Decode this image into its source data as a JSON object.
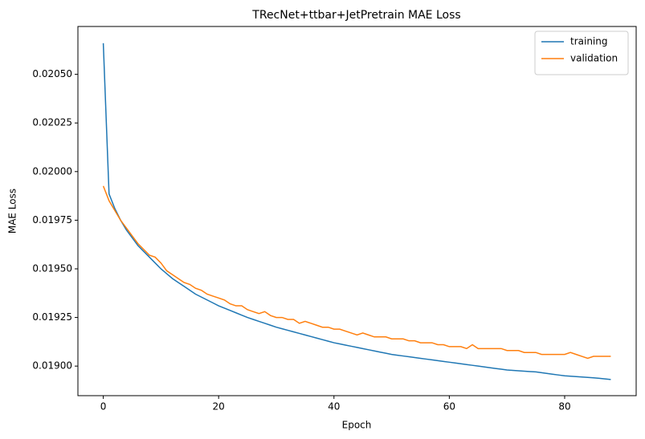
{
  "chart_data": {
    "type": "line",
    "title": "TRecNet+ttbar+JetPretrain MAE Loss",
    "xlabel": "Epoch",
    "ylabel": "MAE Loss",
    "x": [
      0,
      1,
      2,
      3,
      4,
      5,
      6,
      7,
      8,
      9,
      10,
      11,
      12,
      13,
      14,
      15,
      16,
      17,
      18,
      19,
      20,
      21,
      22,
      23,
      24,
      25,
      26,
      27,
      28,
      29,
      30,
      31,
      32,
      33,
      34,
      35,
      36,
      37,
      38,
      39,
      40,
      41,
      42,
      43,
      44,
      45,
      46,
      47,
      48,
      49,
      50,
      51,
      52,
      53,
      54,
      55,
      56,
      57,
      58,
      59,
      60,
      61,
      62,
      63,
      64,
      65,
      66,
      67,
      68,
      69,
      70,
      71,
      72,
      73,
      74,
      75,
      76,
      77,
      78,
      79,
      80,
      81,
      82,
      83,
      84,
      85,
      86,
      87,
      88
    ],
    "series": [
      {
        "name": "training",
        "color": "#1f77b4",
        "values": [
          0.02066,
          0.019885,
          0.01981,
          0.01975,
          0.0197,
          0.01966,
          0.01962,
          0.01959,
          0.01956,
          0.01953,
          0.0195,
          0.019475,
          0.01945,
          0.01943,
          0.01941,
          0.01939,
          0.01937,
          0.019355,
          0.01934,
          0.019325,
          0.01931,
          0.019298,
          0.019286,
          0.019274,
          0.019262,
          0.01925,
          0.01924,
          0.01923,
          0.01922,
          0.01921,
          0.0192,
          0.019192,
          0.019184,
          0.019176,
          0.019168,
          0.01916,
          0.019152,
          0.019144,
          0.019136,
          0.019128,
          0.01912,
          0.019114,
          0.019108,
          0.019102,
          0.019096,
          0.01909,
          0.019084,
          0.019078,
          0.019072,
          0.019066,
          0.01906,
          0.019056,
          0.019052,
          0.019048,
          0.019044,
          0.01904,
          0.019036,
          0.019032,
          0.019028,
          0.019024,
          0.01902,
          0.019016,
          0.019012,
          0.019008,
          0.019004,
          0.019,
          0.018996,
          0.018992,
          0.018988,
          0.018984,
          0.01898,
          0.018978,
          0.018976,
          0.018974,
          0.018972,
          0.01897,
          0.018966,
          0.018962,
          0.018958,
          0.018954,
          0.01895,
          0.018948,
          0.018946,
          0.018944,
          0.018942,
          0.01894,
          0.018937,
          0.018934,
          0.018931
        ]
      },
      {
        "name": "validation",
        "color": "#ff7f0e",
        "values": [
          0.019926,
          0.01985,
          0.0198,
          0.01975,
          0.01971,
          0.01967,
          0.01963,
          0.0196,
          0.01957,
          0.01956,
          0.01953,
          0.01949,
          0.01947,
          0.01945,
          0.01943,
          0.01942,
          0.0194,
          0.01939,
          0.01937,
          0.01936,
          0.01935,
          0.01934,
          0.01932,
          0.01931,
          0.01931,
          0.01929,
          0.01928,
          0.01927,
          0.01928,
          0.01926,
          0.01925,
          0.01925,
          0.01924,
          0.01924,
          0.01922,
          0.01923,
          0.01922,
          0.01921,
          0.0192,
          0.0192,
          0.01919,
          0.01919,
          0.01918,
          0.01917,
          0.01916,
          0.01917,
          0.01916,
          0.01915,
          0.01915,
          0.01915,
          0.01914,
          0.01914,
          0.01914,
          0.01913,
          0.01913,
          0.01912,
          0.01912,
          0.01912,
          0.01911,
          0.01911,
          0.0191,
          0.0191,
          0.0191,
          0.01909,
          0.01911,
          0.01909,
          0.01909,
          0.01909,
          0.01909,
          0.01909,
          0.01908,
          0.01908,
          0.01908,
          0.01907,
          0.01907,
          0.01907,
          0.01906,
          0.01906,
          0.01906,
          0.01906,
          0.01906,
          0.01907,
          0.01906,
          0.01905,
          0.01904,
          0.01905,
          0.01905,
          0.01905,
          0.01905
        ]
      }
    ],
    "xlim": [
      -4.4,
      92.4
    ],
    "xticks": [
      0,
      20,
      40,
      60,
      80
    ],
    "ylim": [
      0.018848,
      0.020746
    ],
    "yticks": [
      {
        "value": 0.019,
        "label": "0.01900"
      },
      {
        "value": 0.01925,
        "label": "0.01925"
      },
      {
        "value": 0.0195,
        "label": "0.01950"
      },
      {
        "value": 0.01975,
        "label": "0.01975"
      },
      {
        "value": 0.02,
        "label": "0.02000"
      },
      {
        "value": 0.02025,
        "label": "0.02025"
      },
      {
        "value": 0.0205,
        "label": "0.02050"
      }
    ],
    "legend": "upper right"
  }
}
